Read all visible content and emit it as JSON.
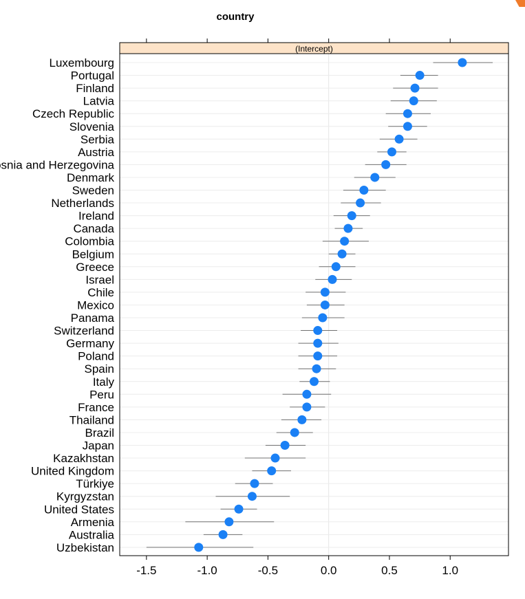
{
  "chart_data": {
    "type": "scatter",
    "title": "country",
    "strip_label": "(Intercept)",
    "xlabel": "",
    "ylabel": "",
    "xlim": [
      -1.72,
      1.48
    ],
    "x_ticks": [
      -1.5,
      -1.0,
      -0.5,
      0.0,
      0.5,
      1.0
    ],
    "x_tick_labels": [
      "-1.5",
      "-1.0",
      "-0.5",
      "0.0",
      "0.5",
      "1.0"
    ],
    "grid": true,
    "point_color": "#1a80f5",
    "strip_color": "#fde3c8",
    "error_bar_color": "#707070",
    "points": [
      {
        "label": "Luxembourg",
        "value": 1.1,
        "lower": 0.86,
        "upper": 1.35
      },
      {
        "label": "Portugal",
        "value": 0.75,
        "lower": 0.59,
        "upper": 0.9
      },
      {
        "label": "Finland",
        "value": 0.71,
        "lower": 0.53,
        "upper": 0.9
      },
      {
        "label": "Latvia",
        "value": 0.7,
        "lower": 0.51,
        "upper": 0.89
      },
      {
        "label": "Czech Republic",
        "value": 0.65,
        "lower": 0.47,
        "upper": 0.84
      },
      {
        "label": "Slovenia",
        "value": 0.65,
        "lower": 0.49,
        "upper": 0.81
      },
      {
        "label": "Serbia",
        "value": 0.58,
        "lower": 0.42,
        "upper": 0.73
      },
      {
        "label": "Austria",
        "value": 0.52,
        "lower": 0.4,
        "upper": 0.64
      },
      {
        "label": "Bosnia and Herzegovina",
        "value": 0.47,
        "lower": 0.3,
        "upper": 0.64
      },
      {
        "label": "Denmark",
        "value": 0.38,
        "lower": 0.21,
        "upper": 0.55
      },
      {
        "label": "Sweden",
        "value": 0.29,
        "lower": 0.12,
        "upper": 0.47
      },
      {
        "label": "Netherlands",
        "value": 0.26,
        "lower": 0.1,
        "upper": 0.43
      },
      {
        "label": "Ireland",
        "value": 0.19,
        "lower": 0.04,
        "upper": 0.34
      },
      {
        "label": "Canada",
        "value": 0.16,
        "lower": 0.05,
        "upper": 0.28
      },
      {
        "label": "Colombia",
        "value": 0.13,
        "lower": -0.05,
        "upper": 0.33
      },
      {
        "label": "Belgium",
        "value": 0.11,
        "lower": 0.0,
        "upper": 0.22
      },
      {
        "label": "Greece",
        "value": 0.06,
        "lower": -0.08,
        "upper": 0.22
      },
      {
        "label": "Israel",
        "value": 0.03,
        "lower": -0.11,
        "upper": 0.19
      },
      {
        "label": "Chile",
        "value": -0.03,
        "lower": -0.19,
        "upper": 0.14
      },
      {
        "label": "Mexico",
        "value": -0.03,
        "lower": -0.18,
        "upper": 0.13
      },
      {
        "label": "Panama",
        "value": -0.05,
        "lower": -0.22,
        "upper": 0.13
      },
      {
        "label": "Switzerland",
        "value": -0.09,
        "lower": -0.23,
        "upper": 0.07
      },
      {
        "label": "Germany",
        "value": -0.09,
        "lower": -0.25,
        "upper": 0.08
      },
      {
        "label": "Poland",
        "value": -0.09,
        "lower": -0.25,
        "upper": 0.07
      },
      {
        "label": "Spain",
        "value": -0.1,
        "lower": -0.25,
        "upper": 0.06
      },
      {
        "label": "Italy",
        "value": -0.12,
        "lower": -0.24,
        "upper": 0.01
      },
      {
        "label": "Peru",
        "value": -0.18,
        "lower": -0.38,
        "upper": 0.02
      },
      {
        "label": "France",
        "value": -0.18,
        "lower": -0.32,
        "upper": -0.03
      },
      {
        "label": "Thailand",
        "value": -0.22,
        "lower": -0.39,
        "upper": -0.06
      },
      {
        "label": "Brazil",
        "value": -0.28,
        "lower": -0.43,
        "upper": -0.13
      },
      {
        "label": "Japan",
        "value": -0.36,
        "lower": -0.52,
        "upper": -0.19
      },
      {
        "label": "Kazakhstan",
        "value": -0.44,
        "lower": -0.69,
        "upper": -0.19
      },
      {
        "label": "United Kingdom",
        "value": -0.47,
        "lower": -0.63,
        "upper": -0.31
      },
      {
        "label": "Türkiye",
        "value": -0.61,
        "lower": -0.77,
        "upper": -0.46
      },
      {
        "label": "Kyrgyzstan",
        "value": -0.63,
        "lower": -0.93,
        "upper": -0.32
      },
      {
        "label": "United States",
        "value": -0.74,
        "lower": -0.89,
        "upper": -0.59
      },
      {
        "label": "Armenia",
        "value": -0.82,
        "lower": -1.18,
        "upper": -0.45
      },
      {
        "label": "Australia",
        "value": -0.87,
        "lower": -1.03,
        "upper": -0.71
      },
      {
        "label": "Uzbekistan",
        "value": -1.07,
        "lower": -1.5,
        "upper": -0.62
      }
    ]
  }
}
